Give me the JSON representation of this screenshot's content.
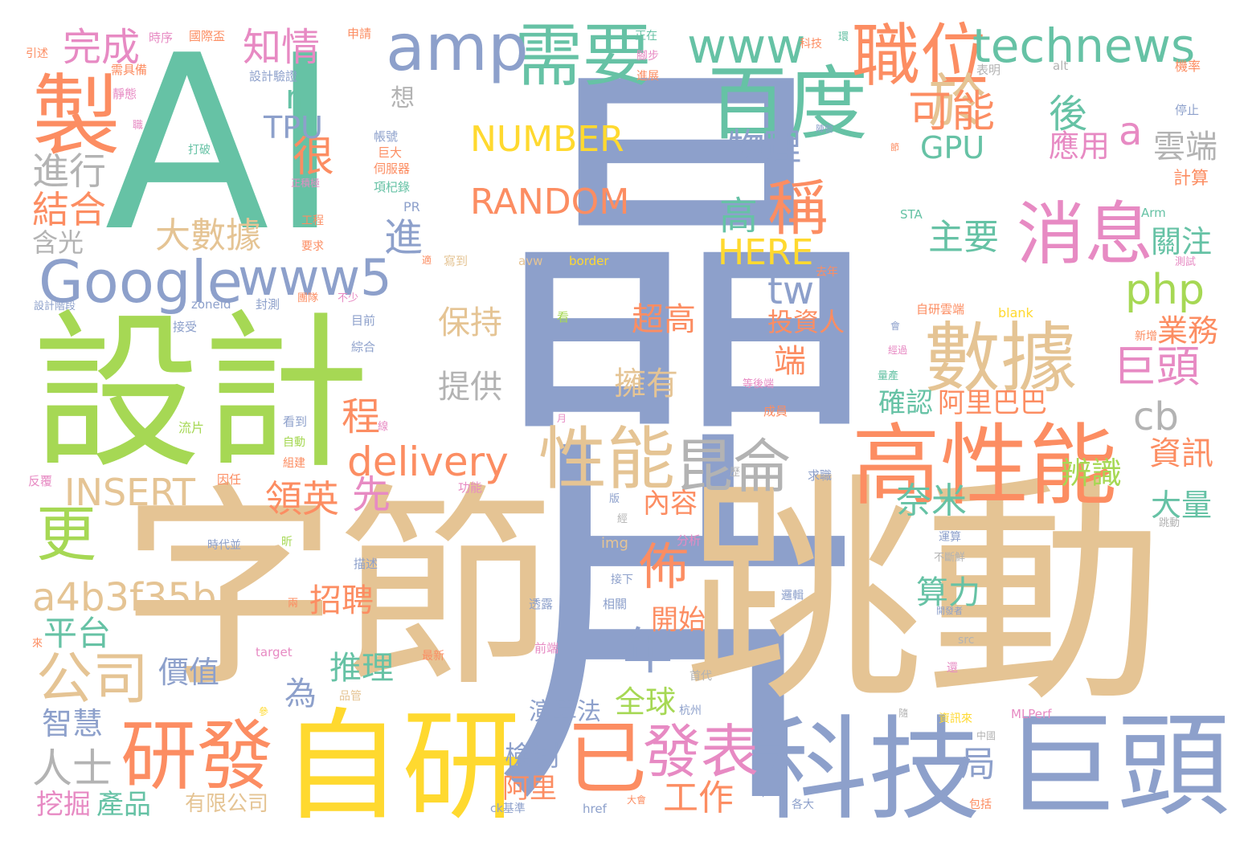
{
  "palette": {
    "green": "#66c2a5",
    "orange": "#fc8d62",
    "blue": "#8da0cb",
    "pink": "#e78ac3",
    "lime": "#a6d854",
    "yellow": "#ffd92f",
    "tan": "#e5c494",
    "gray": "#b3b3b3"
  },
  "words": [
    {
      "text": "晶片",
      "color": "blue",
      "vertical": true
    },
    {
      "text": "AI",
      "color": "green",
      "vertical": false
    },
    {
      "text": "字節",
      "color": "tan",
      "vertical": false
    },
    {
      "text": "跳動",
      "color": "tan",
      "vertical": false
    },
    {
      "text": "設計",
      "color": "lime",
      "vertical": false
    },
    {
      "text": "自研",
      "color": "yellow",
      "vertical": false
    },
    {
      "text": "科技",
      "color": "blue",
      "vertical": false
    },
    {
      "text": "巨頭",
      "color": "blue",
      "vertical": false
    },
    {
      "text": "高性能",
      "color": "orange",
      "vertical": false
    },
    {
      "text": "製",
      "color": "orange",
      "vertical": false
    },
    {
      "text": "百度",
      "color": "green",
      "vertical": false
    },
    {
      "text": "數據",
      "color": "tan",
      "vertical": false
    },
    {
      "text": "研發",
      "color": "orange",
      "vertical": false
    },
    {
      "text": "已",
      "color": "orange",
      "vertical": false
    },
    {
      "text": "消息",
      "color": "pink",
      "vertical": false
    },
    {
      "text": "職位",
      "color": "orange",
      "vertical": false
    },
    {
      "text": "性能",
      "color": "tan",
      "vertical": false
    },
    {
      "text": "昆侖",
      "color": "gray",
      "vertical": false
    },
    {
      "text": "需要",
      "color": "green",
      "vertical": false
    },
    {
      "text": "amp",
      "color": "blue",
      "vertical": false
    },
    {
      "text": "www",
      "color": "green",
      "vertical": false
    },
    {
      "text": "technews",
      "color": "green",
      "vertical": false
    },
    {
      "text": "Google",
      "color": "blue",
      "vertical": false
    },
    {
      "text": "www5",
      "color": "blue",
      "vertical": false
    },
    {
      "text": "發表",
      "color": "pink",
      "vertical": false
    },
    {
      "text": "於",
      "color": "tan",
      "vertical": false
    },
    {
      "text": "稱",
      "color": "orange",
      "vertical": false
    },
    {
      "text": "更",
      "color": "lime",
      "vertical": false
    },
    {
      "text": "公司",
      "color": "tan",
      "vertical": false
    },
    {
      "text": "a4b3f35b",
      "color": "tan",
      "vertical": false
    },
    {
      "text": "delivery",
      "color": "orange",
      "vertical": false
    },
    {
      "text": "INSERT",
      "color": "tan",
      "vertical": false
    },
    {
      "text": "NUMBER",
      "color": "yellow",
      "vertical": false
    },
    {
      "text": "RANDOM",
      "color": "orange",
      "vertical": false
    },
    {
      "text": "php",
      "color": "lime",
      "vertical": false
    },
    {
      "text": "佈",
      "color": "orange",
      "vertical": false
    },
    {
      "text": "年",
      "color": "blue",
      "vertical": false
    },
    {
      "text": "可能",
      "color": "orange",
      "vertical": false
    },
    {
      "text": "巨頭",
      "color": "pink",
      "vertical": false
    },
    {
      "text": "完成",
      "color": "pink",
      "vertical": false
    },
    {
      "text": "知情",
      "color": "pink",
      "vertical": false
    },
    {
      "text": "很",
      "color": "orange",
      "vertical": false
    },
    {
      "text": "後",
      "color": "green",
      "vertical": false
    },
    {
      "text": "a",
      "color": "pink",
      "vertical": false
    },
    {
      "text": "n",
      "color": "green",
      "vertical": false
    },
    {
      "text": "TPU",
      "color": "blue",
      "vertical": false
    },
    {
      "text": "進行",
      "color": "gray",
      "vertical": false
    },
    {
      "text": "結合",
      "color": "orange",
      "vertical": false
    },
    {
      "text": "物理",
      "color": "blue",
      "vertical": false
    },
    {
      "text": "高",
      "color": "green",
      "vertical": false
    },
    {
      "text": "GPU",
      "color": "green",
      "vertical": false
    },
    {
      "text": "大數據",
      "color": "tan",
      "vertical": false
    },
    {
      "text": "進",
      "color": "blue",
      "vertical": false
    },
    {
      "text": "主要",
      "color": "green",
      "vertical": false
    },
    {
      "text": "HERE",
      "color": "yellow",
      "vertical": false
    },
    {
      "text": "tw",
      "color": "blue",
      "vertical": false
    },
    {
      "text": "雲端",
      "color": "gray",
      "vertical": false
    },
    {
      "text": "應用",
      "color": "pink",
      "vertical": false
    },
    {
      "text": "關注",
      "color": "green",
      "vertical": false
    },
    {
      "text": "保持",
      "color": "tan",
      "vertical": false
    },
    {
      "text": "超高",
      "color": "orange",
      "vertical": false
    },
    {
      "text": "提供",
      "color": "gray",
      "vertical": false
    },
    {
      "text": "擁有",
      "color": "tan",
      "vertical": false
    },
    {
      "text": "投資人",
      "color": "orange",
      "vertical": false
    },
    {
      "text": "端",
      "color": "orange",
      "vertical": false
    },
    {
      "text": "業務",
      "color": "orange",
      "vertical": false
    },
    {
      "text": "確認",
      "color": "green",
      "vertical": false
    },
    {
      "text": "阿里巴巴",
      "color": "orange",
      "vertical": false
    },
    {
      "text": "cb",
      "color": "gray",
      "vertical": false
    },
    {
      "text": "程",
      "color": "orange",
      "vertical": false
    },
    {
      "text": "資訊",
      "color": "orange",
      "vertical": false
    },
    {
      "text": "辨識",
      "color": "lime",
      "vertical": false
    },
    {
      "text": "奈米",
      "color": "green",
      "vertical": false
    },
    {
      "text": "領英",
      "color": "orange",
      "vertical": false
    },
    {
      "text": "先",
      "color": "pink",
      "vertical": false
    },
    {
      "text": "內容",
      "color": "orange",
      "vertical": false
    },
    {
      "text": "大量",
      "color": "green",
      "vertical": false
    },
    {
      "text": "平台",
      "color": "green",
      "vertical": false
    },
    {
      "text": "招聘",
      "color": "orange",
      "vertical": false
    },
    {
      "text": "開始",
      "color": "orange",
      "vertical": false
    },
    {
      "text": "算力",
      "color": "green",
      "vertical": false
    },
    {
      "text": "價值",
      "color": "blue",
      "vertical": false
    },
    {
      "text": "推理",
      "color": "green",
      "vertical": false
    },
    {
      "text": "為",
      "color": "blue",
      "vertical": false
    },
    {
      "text": "全球",
      "color": "lime",
      "vertical": false
    },
    {
      "text": "智慧",
      "color": "blue",
      "vertical": false
    },
    {
      "text": "人士",
      "color": "gray",
      "vertical": false
    },
    {
      "text": "演算法",
      "color": "blue",
      "vertical": false
    },
    {
      "text": "檢測",
      "color": "blue",
      "vertical": false
    },
    {
      "text": "局",
      "color": "blue",
      "vertical": false
    },
    {
      "text": "阿里",
      "color": "orange",
      "vertical": false
    },
    {
      "text": "工作",
      "color": "orange",
      "vertical": false
    },
    {
      "text": "挖掘",
      "color": "pink",
      "vertical": false
    },
    {
      "text": "產品",
      "color": "green",
      "vertical": false
    },
    {
      "text": "有限公司",
      "color": "tan",
      "vertical": false
    },
    {
      "text": "含光",
      "color": "gray",
      "vertical": false
    },
    {
      "text": "想",
      "color": "gray",
      "vertical": false
    },
    {
      "text": "帳號",
      "color": "blue",
      "vertical": false
    },
    {
      "text": "巨大",
      "color": "orange",
      "vertical": false
    },
    {
      "text": "伺服器",
      "color": "orange",
      "vertical": false
    },
    {
      "text": "項杞錄",
      "color": "green",
      "vertical": false
    },
    {
      "text": "PR",
      "color": "blue",
      "vertical": false
    },
    {
      "text": "寫到",
      "color": "tan",
      "vertical": false
    },
    {
      "text": "avw",
      "color": "tan",
      "vertical": false
    },
    {
      "text": "border",
      "color": "yellow",
      "vertical": false
    },
    {
      "text": "alt",
      "color": "gray",
      "vertical": false
    },
    {
      "text": "表明",
      "color": "gray",
      "vertical": false
    },
    {
      "text": "機率",
      "color": "orange",
      "vertical": false
    },
    {
      "text": "停止",
      "color": "blue",
      "vertical": false
    },
    {
      "text": "計算",
      "color": "orange",
      "vertical": false
    },
    {
      "text": "Arm",
      "color": "green",
      "vertical": false
    },
    {
      "text": "測試",
      "color": "pink",
      "vertical": false
    },
    {
      "text": "STA",
      "color": "green",
      "vertical": false
    },
    {
      "text": "去年",
      "color": "orange",
      "vertical": false
    },
    {
      "text": "引述",
      "color": "orange",
      "vertical": false
    },
    {
      "text": "時序",
      "color": "pink",
      "vertical": false
    },
    {
      "text": "國際盃",
      "color": "orange",
      "vertical": false
    },
    {
      "text": "申請",
      "color": "orange",
      "vertical": false
    },
    {
      "text": "正在",
      "color": "green",
      "vertical": false
    },
    {
      "text": "腳步",
      "color": "pink",
      "vertical": false
    },
    {
      "text": "進展",
      "color": "orange",
      "vertical": false
    },
    {
      "text": "科技",
      "color": "orange",
      "vertical": false
    },
    {
      "text": "環",
      "color": "green",
      "vertical": false
    },
    {
      "text": "需具備",
      "color": "orange",
      "vertical": false
    },
    {
      "text": "設計驗證",
      "color": "blue",
      "vertical": false
    },
    {
      "text": "靜態",
      "color": "pink",
      "vertical": false
    },
    {
      "text": "職",
      "color": "pink",
      "vertical": false
    },
    {
      "text": "打破",
      "color": "green",
      "vertical": false
    },
    {
      "text": "工程",
      "color": "orange",
      "vertical": false
    },
    {
      "text": "要求",
      "color": "orange",
      "vertical": false
    },
    {
      "text": "正積極",
      "color": "pink",
      "vertical": false
    },
    {
      "text": "設計階段",
      "color": "blue",
      "vertical": false
    },
    {
      "text": "zoneid",
      "color": "blue",
      "vertical": false
    },
    {
      "text": "封測",
      "color": "blue",
      "vertical": false
    },
    {
      "text": "團隊",
      "color": "orange",
      "vertical": false
    },
    {
      "text": "不少",
      "color": "pink",
      "vertical": false
    },
    {
      "text": "接受",
      "color": "blue",
      "vertical": false
    },
    {
      "text": "目前",
      "color": "blue",
      "vertical": false
    },
    {
      "text": "綜合",
      "color": "blue",
      "vertical": false
    },
    {
      "text": "看",
      "color": "lime",
      "vertical": false
    },
    {
      "text": "自研雲端",
      "color": "orange",
      "vertical": false
    },
    {
      "text": "blank",
      "color": "yellow",
      "vertical": false
    },
    {
      "text": "新增",
      "color": "orange",
      "vertical": false
    },
    {
      "text": "量產",
      "color": "green",
      "vertical": false
    },
    {
      "text": "等後端",
      "color": "pink",
      "vertical": false
    },
    {
      "text": "成員",
      "color": "orange",
      "vertical": false
    },
    {
      "text": "流片",
      "color": "lime",
      "vertical": false
    },
    {
      "text": "看到",
      "color": "blue",
      "vertical": false
    },
    {
      "text": "自動",
      "color": "lime",
      "vertical": false
    },
    {
      "text": "組建",
      "color": "orange",
      "vertical": false
    },
    {
      "text": "因任",
      "color": "orange",
      "vertical": false
    },
    {
      "text": "反覆",
      "color": "pink",
      "vertical": false
    },
    {
      "text": "功能",
      "color": "pink",
      "vertical": false
    },
    {
      "text": "求職",
      "color": "blue",
      "vertical": false
    },
    {
      "text": "時代並",
      "color": "blue",
      "vertical": false
    },
    {
      "text": "分析",
      "color": "pink",
      "vertical": false
    },
    {
      "text": "img",
      "color": "tan",
      "vertical": false
    },
    {
      "text": "描述",
      "color": "blue",
      "vertical": false
    },
    {
      "text": "運算",
      "color": "blue",
      "vertical": false
    },
    {
      "text": "不斷鮮",
      "color": "gray",
      "vertical": false
    },
    {
      "text": "跳動",
      "color": "gray",
      "vertical": false
    },
    {
      "text": "透露",
      "color": "blue",
      "vertical": false
    },
    {
      "text": "相關",
      "color": "blue",
      "vertical": false
    },
    {
      "text": "邏輯",
      "color": "blue",
      "vertical": false
    },
    {
      "text": "target",
      "color": "pink",
      "vertical": false
    },
    {
      "text": "src",
      "color": "gray",
      "vertical": false
    },
    {
      "text": "最新",
      "color": "orange",
      "vertical": false
    },
    {
      "text": "前端",
      "color": "pink",
      "vertical": false
    },
    {
      "text": "首代",
      "color": "gray",
      "vertical": false
    },
    {
      "text": "品管",
      "color": "tan",
      "vertical": false
    },
    {
      "text": "杭州",
      "color": "blue",
      "vertical": false
    },
    {
      "text": "資訊來",
      "color": "yellow",
      "vertical": false
    },
    {
      "text": "MLPerf",
      "color": "pink",
      "vertical": false
    },
    {
      "text": "href",
      "color": "blue",
      "vertical": false
    },
    {
      "text": "各大",
      "color": "blue",
      "vertical": false
    },
    {
      "text": "包括",
      "color": "orange",
      "vertical": false
    },
    {
      "text": "ck基準",
      "color": "blue",
      "vertical": false
    },
    {
      "text": "大會",
      "color": "orange",
      "vertical": false
    },
    {
      "text": "中國",
      "color": "gray",
      "vertical": false
    },
    {
      "text": "參",
      "color": "yellow",
      "vertical": false
    },
    {
      "text": "隨",
      "color": "gray",
      "vertical": false
    },
    {
      "text": "月",
      "color": "pink",
      "vertical": false
    },
    {
      "text": "經",
      "color": "gray",
      "vertical": false
    },
    {
      "text": "版",
      "color": "blue",
      "vertical": false
    },
    {
      "text": "歷",
      "color": "gray",
      "vertical": false
    },
    {
      "text": "陣營",
      "color": "blue",
      "vertical": false
    },
    {
      "text": "節",
      "color": "orange",
      "vertical": false
    },
    {
      "text": "適",
      "color": "orange",
      "vertical": false
    },
    {
      "text": "會",
      "color": "blue",
      "vertical": false
    },
    {
      "text": "經過",
      "color": "pink",
      "vertical": false
    },
    {
      "text": "開發者",
      "color": "blue",
      "vertical": false
    },
    {
      "text": "兩",
      "color": "orange",
      "vertical": false
    },
    {
      "text": "來",
      "color": "orange",
      "vertical": false
    },
    {
      "text": "昕",
      "color": "lime",
      "vertical": false
    },
    {
      "text": "接下",
      "color": "blue",
      "vertical": false
    },
    {
      "text": "還",
      "color": "pink",
      "vertical": false
    },
    {
      "text": "線",
      "color": "pink",
      "vertical": false
    }
  ]
}
